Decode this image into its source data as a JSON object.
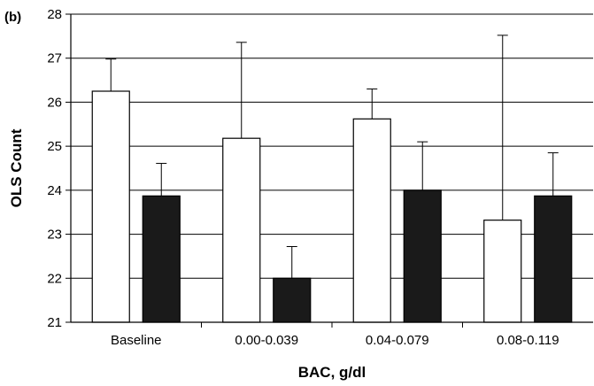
{
  "panel_label": "(b)",
  "chart_data": {
    "type": "bar",
    "title": "",
    "xlabel": "BAC, g/dl",
    "ylabel": "OLS Count",
    "ylim": [
      21,
      28
    ],
    "yticks": [
      21,
      22,
      23,
      24,
      25,
      26,
      27,
      28
    ],
    "grid": true,
    "categories": [
      "Baseline",
      "0.00-0.039",
      "0.04-0.079",
      "0.08-0.119"
    ],
    "series": [
      {
        "color": "#ffffff",
        "values": [
          26.25,
          25.18,
          25.62,
          23.32
        ],
        "error": [
          0.73,
          2.18,
          0.68,
          4.2
        ]
      },
      {
        "color": "#1a1a1a",
        "values": [
          23.87,
          22.0,
          24.0,
          23.87
        ],
        "error": [
          0.74,
          0.72,
          1.1,
          0.98
        ]
      }
    ]
  }
}
